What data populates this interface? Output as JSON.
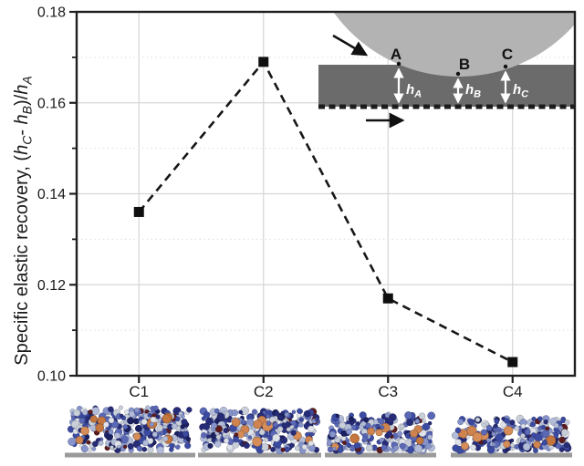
{
  "chart_data": {
    "type": "line",
    "title": "",
    "xlabel": "",
    "ylabel": "Specific elastic recovery, (hC- hB)/hA",
    "ylabel_segments": [
      {
        "text": "Specific elastic recovery, ("
      },
      {
        "text": "h",
        "italic": true,
        "sub": "C"
      },
      {
        "text": "- "
      },
      {
        "text": "h",
        "italic": true,
        "sub": "B"
      },
      {
        "text": ")/"
      },
      {
        "text": "h",
        "italic": true,
        "sub": "A"
      }
    ],
    "categories": [
      "C1",
      "C2",
      "C3",
      "C4"
    ],
    "values": [
      0.136,
      0.169,
      0.117,
      0.103
    ],
    "ylim": [
      0.1,
      0.18
    ],
    "yticks_major": [
      0.1,
      0.12,
      0.14,
      0.16,
      0.18
    ],
    "ytick_labels": [
      "0.10",
      "0.12",
      "0.14",
      "0.16",
      "0.18"
    ],
    "yticks_minor": [
      0.11,
      0.13,
      0.15,
      0.17
    ],
    "grid": true,
    "legend_position": "none",
    "line_style": "dashed",
    "marker": "square",
    "colors": {
      "marker": "#0f0f0f",
      "line": "#161616",
      "frame": "#1f1f1f",
      "grid_major": "#d6d6d6",
      "grid_minor": "#e4e4e4",
      "tick_label": "#1a1a1a"
    }
  },
  "inset": {
    "point_labels": [
      "A",
      "B",
      "C"
    ],
    "height_labels": [
      {
        "base": "h",
        "sub": "A"
      },
      {
        "base": "h",
        "sub": "B"
      },
      {
        "base": "h",
        "sub": "C"
      }
    ],
    "colors": {
      "indenter": "#b3b3b3",
      "film": "#6b6b6b",
      "baseline_dash": "#1c1c1c",
      "arrow": "#111111",
      "measure_arrow": "#ffffff",
      "point_dot": "#111111",
      "label": "#111111"
    }
  },
  "thumbnails": {
    "count": 4,
    "for_categories": [
      "C1",
      "C2",
      "C3",
      "C4"
    ],
    "substrate_color": "#9a9a9a",
    "sphere_palette": [
      "#272c78",
      "#3c4ba2",
      "#5a68b6",
      "#8694cb",
      "#b2bcd9",
      "#c9cfd9",
      "#e0e3e9",
      "#1b2060",
      "#5a1b1e"
    ],
    "orange_palette": [
      "#c4763f",
      "#cf8450",
      "#d68d58"
    ]
  }
}
